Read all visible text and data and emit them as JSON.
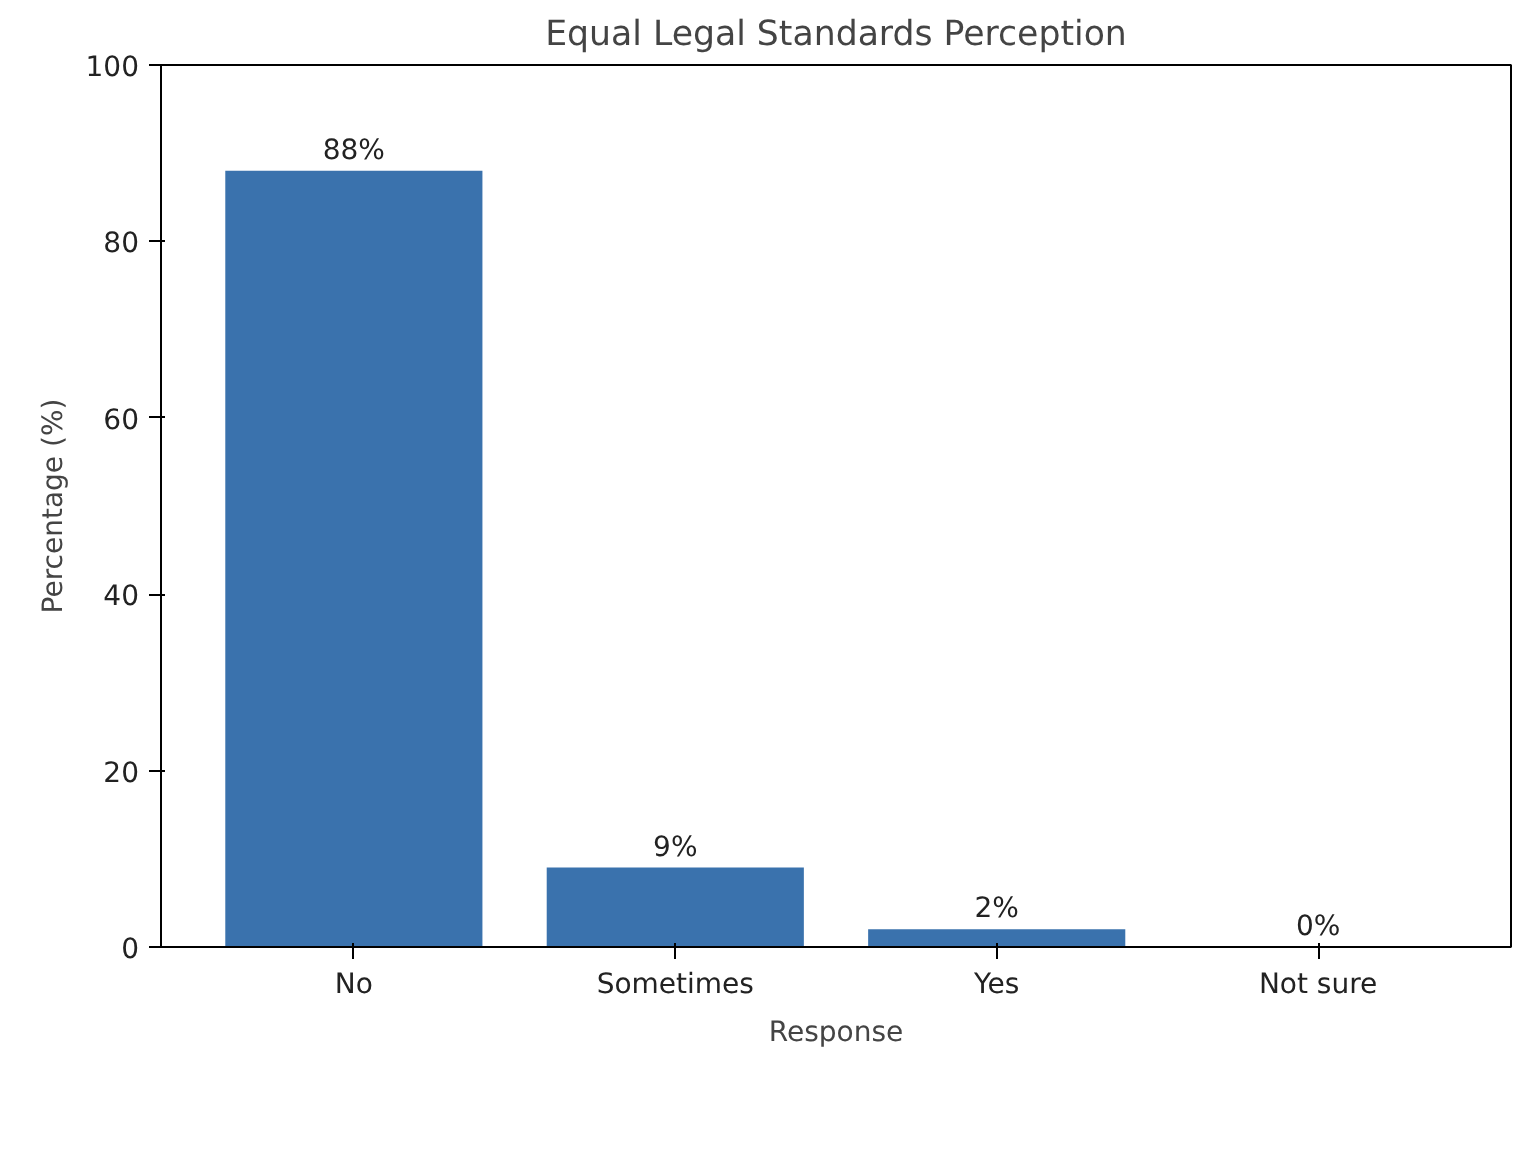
{
  "chart_data": {
    "type": "bar",
    "title": "Equal Legal Standards Perception",
    "xlabel": "Response",
    "ylabel": "Percentage (%)",
    "categories": [
      "No",
      "Sometimes",
      "Yes",
      "Not sure"
    ],
    "values": [
      88,
      9,
      2,
      0
    ],
    "value_labels": [
      "88%",
      "9%",
      "2%",
      "0%"
    ],
    "color": "#3a72ad",
    "ylim": [
      0,
      100
    ],
    "yticks": [
      0,
      20,
      40,
      60,
      80,
      100
    ],
    "grid": false
  }
}
